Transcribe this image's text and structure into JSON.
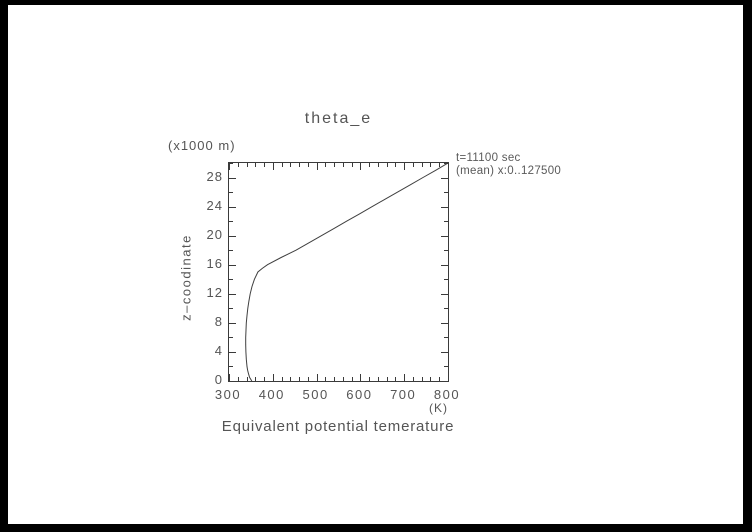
{
  "window": {
    "background": "#000000",
    "paper": "#ffffff"
  },
  "chart_data": {
    "type": "line",
    "title": "theta_e",
    "xlabel": "Equivalent potential temerature",
    "x_unit_label": "(K)",
    "ylabel": "z–coodinate",
    "y_unit_label": "(x1000 m)",
    "annotation_line1": "t=11100 sec",
    "annotation_line2": "(mean) x:0..127500",
    "xlim": [
      300,
      800
    ],
    "ylim": [
      0,
      30
    ],
    "x_major_ticks": [
      300,
      400,
      500,
      600,
      700,
      800
    ],
    "x_minor_step": 20,
    "y_major_ticks": [
      0,
      4,
      8,
      12,
      16,
      20,
      24,
      28
    ],
    "y_minor_step": 2,
    "grid": false,
    "frame": "box-with-inward-ticks-all-sides",
    "legend": "none",
    "line_color": "#3f3f3f",
    "series": [
      {
        "name": "theta_e",
        "points_x_theta_K_y_z_km": [
          [
            352,
            0
          ],
          [
            347,
            0.5
          ],
          [
            344.5,
            1
          ],
          [
            342.5,
            1.5
          ],
          [
            341,
            2
          ],
          [
            339.5,
            3
          ],
          [
            338.6,
            4
          ],
          [
            338.2,
            5
          ],
          [
            338.2,
            6
          ],
          [
            338.7,
            7
          ],
          [
            339.5,
            8
          ],
          [
            341,
            9
          ],
          [
            343,
            10
          ],
          [
            345.5,
            11
          ],
          [
            348.5,
            12
          ],
          [
            352.5,
            13
          ],
          [
            358,
            14
          ],
          [
            366,
            15
          ],
          [
            376,
            15.5
          ],
          [
            388,
            16
          ],
          [
            419,
            17
          ],
          [
            453,
            18
          ],
          [
            482,
            19
          ],
          [
            511,
            20
          ],
          [
            540,
            21
          ],
          [
            569,
            22
          ],
          [
            598,
            23
          ],
          [
            627,
            24
          ],
          [
            656,
            25
          ],
          [
            685,
            26
          ],
          [
            714,
            27
          ],
          [
            743,
            28
          ],
          [
            772,
            29
          ],
          [
            800,
            30
          ]
        ]
      }
    ]
  }
}
